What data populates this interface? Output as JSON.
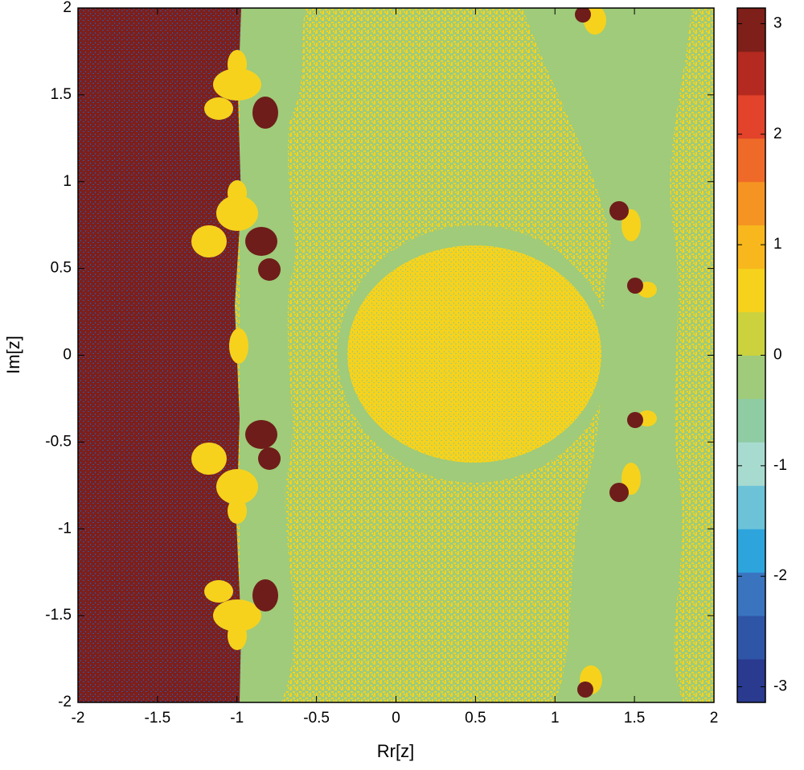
{
  "chart_data": {
    "type": "heatmap",
    "xlabel": "Rr[z]",
    "ylabel": "Im[z]",
    "xlim": [
      -2,
      2
    ],
    "ylim": [
      -2,
      2
    ],
    "xticks": [
      -2,
      -1.5,
      -1,
      -0.5,
      0,
      0.5,
      1,
      1.5,
      2
    ],
    "yticks": [
      -2,
      -1.5,
      -1,
      -0.5,
      0,
      0.5,
      1,
      1.5,
      2
    ],
    "colorbar": {
      "clim": [
        -3.1416,
        3.1416
      ],
      "ticks": [
        -3,
        -2,
        -1,
        0,
        1,
        2,
        3
      ],
      "colors": [
        "#2a3a8f",
        "#2f55a6",
        "#3a74bf",
        "#2ea4dc",
        "#6cc3d8",
        "#a8dbd0",
        "#8fcca4",
        "#9fcb7a",
        "#cbd23e",
        "#f6d21d",
        "#f8b81d",
        "#f59422",
        "#ef6a28",
        "#e2432a",
        "#b42a20",
        "#7e1f1a"
      ]
    }
  }
}
